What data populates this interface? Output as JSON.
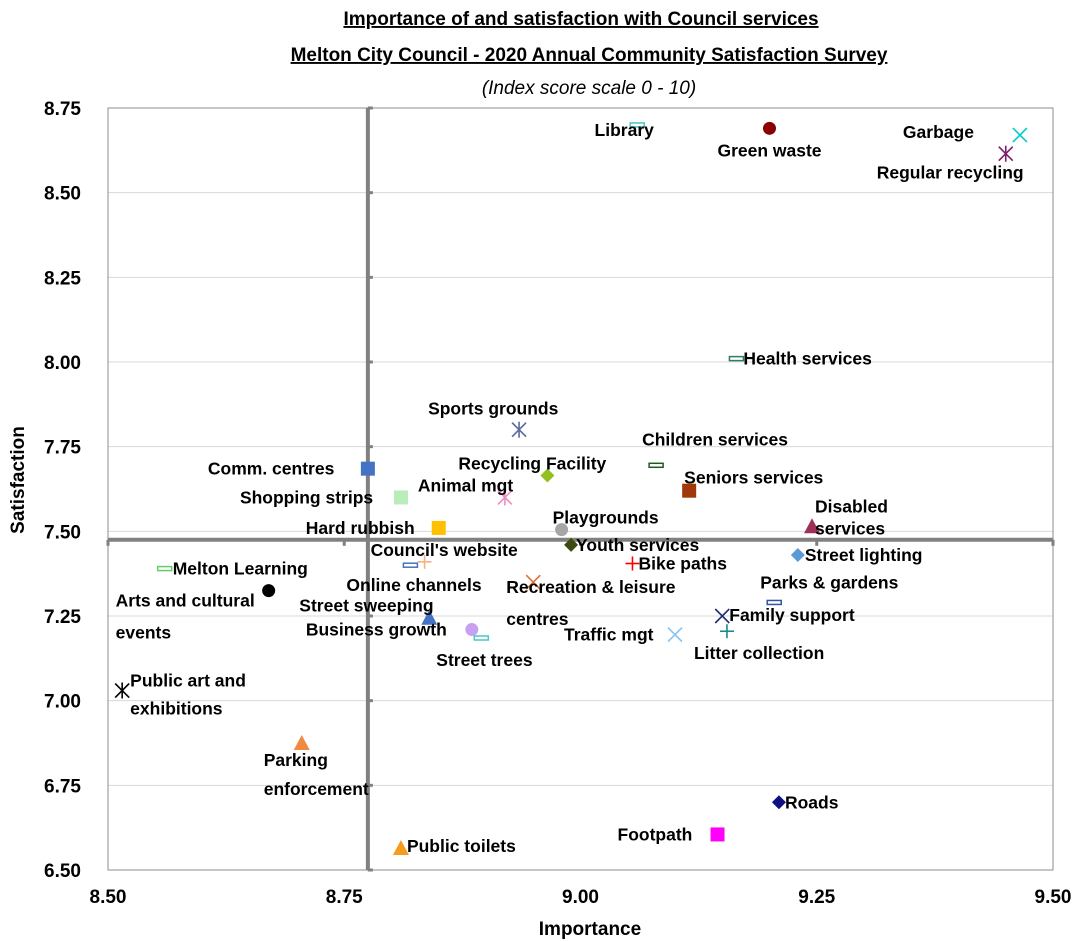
{
  "chart_data": {
    "type": "scatter",
    "title": "Importance of and satisfaction with Council services",
    "subtitle": "Melton City Council - 2020 Annual Community Satisfaction Survey",
    "subtitle2": "(Index score scale 0 - 10)",
    "xlabel": "Importance",
    "ylabel": "Satisfaction",
    "xlim": [
      8.5,
      9.5
    ],
    "ylim": [
      6.5,
      8.75
    ],
    "x_ticks": [
      "8.50",
      "8.75",
      "9.00",
      "9.25",
      "9.50"
    ],
    "y_ticks": [
      "6.50",
      "6.75",
      "7.00",
      "7.25",
      "7.50",
      "7.75",
      "8.00",
      "8.25",
      "8.50",
      "8.75"
    ],
    "grid": true,
    "quadrant_lines": {
      "x": 8.775,
      "y": 7.475
    },
    "points": [
      {
        "label_lines": [
          "Library"
        ],
        "x": 9.06,
        "y": 8.7,
        "marker": "bar",
        "color": "#4bc6c6"
      },
      {
        "label_lines": [
          "Green waste"
        ],
        "x": 9.2,
        "y": 8.69,
        "marker": "circle",
        "color": "#8b0000"
      },
      {
        "label_lines": [
          "Garbage"
        ],
        "x": 9.465,
        "y": 8.67,
        "marker": "x",
        "color": "#00cccc"
      },
      {
        "label_lines": [
          "Regular recycling"
        ],
        "x": 9.45,
        "y": 8.615,
        "marker": "star",
        "color": "#7a1f6b"
      },
      {
        "label_lines": [
          "Health services"
        ],
        "x": 9.165,
        "y": 8.01,
        "marker": "bar",
        "color": "#2e7d5b"
      },
      {
        "label_lines": [
          "Sports grounds"
        ],
        "x": 8.935,
        "y": 7.8,
        "marker": "star",
        "color": "#5a6aa0"
      },
      {
        "label_lines": [
          "Children services"
        ],
        "x": 9.08,
        "y": 7.695,
        "marker": "bar",
        "color": "#1f5a1f"
      },
      {
        "label_lines": [
          "Comm. centres"
        ],
        "x": 8.775,
        "y": 7.685,
        "marker": "square",
        "color": "#4472c4"
      },
      {
        "label_lines": [
          "Recycling Facility"
        ],
        "x": 8.965,
        "y": 7.665,
        "marker": "diamond",
        "color": "#92c020"
      },
      {
        "label_lines": [
          "Seniors services"
        ],
        "x": 9.115,
        "y": 7.62,
        "marker": "square",
        "color": "#a0380a"
      },
      {
        "label_lines": [
          "Animal mgt"
        ],
        "x": 8.92,
        "y": 7.6,
        "marker": "star",
        "color": "#f28cc0"
      },
      {
        "label_lines": [
          "Shopping strips"
        ],
        "x": 8.81,
        "y": 7.6,
        "marker": "square",
        "color": "#b8ecb8"
      },
      {
        "label_lines": [
          "Disabled",
          "services"
        ],
        "x": 9.245,
        "y": 7.515,
        "marker": "triangle",
        "color": "#a0305a"
      },
      {
        "label_lines": [
          "Hard rubbish"
        ],
        "x": 8.85,
        "y": 7.51,
        "marker": "square",
        "color": "#ffc000"
      },
      {
        "label_lines": [
          "Playgrounds"
        ],
        "x": 8.98,
        "y": 7.505,
        "marker": "circle",
        "color": "#a6a6a6"
      },
      {
        "label_lines": [
          "Youth services"
        ],
        "x": 8.99,
        "y": 7.46,
        "marker": "diamond",
        "color": "#3a4a10"
      },
      {
        "label_lines": [
          "Street lighting"
        ],
        "x": 9.23,
        "y": 7.43,
        "marker": "diamond",
        "color": "#5b9bd5"
      },
      {
        "label_lines": [
          "Council's website"
        ],
        "x": 8.835,
        "y": 7.41,
        "marker": "plus",
        "color": "#f4b183"
      },
      {
        "label_lines": [
          "Bike paths"
        ],
        "x": 9.055,
        "y": 7.405,
        "marker": "plus",
        "color": "#ff0000"
      },
      {
        "label_lines": [
          "Online channels"
        ],
        "x": 8.82,
        "y": 7.4,
        "marker": "bar",
        "color": "#4472c4"
      },
      {
        "label_lines": [
          "Melton Learning"
        ],
        "x": 8.56,
        "y": 7.39,
        "marker": "bar",
        "color": "#66cc66"
      },
      {
        "label_lines": [
          "Recreation & leisure",
          "centres"
        ],
        "x": 8.95,
        "y": 7.35,
        "marker": "x",
        "color": "#e07030"
      },
      {
        "label_lines": [
          "Arts and cultural",
          "events"
        ],
        "x": 8.67,
        "y": 7.325,
        "marker": "circle",
        "color": "#000000"
      },
      {
        "label_lines": [
          "Parks & gardens"
        ],
        "x": 9.205,
        "y": 7.29,
        "marker": "bar",
        "color": "#2f55a4"
      },
      {
        "label_lines": [
          "Family support"
        ],
        "x": 9.15,
        "y": 7.25,
        "marker": "x",
        "color": "#203070"
      },
      {
        "label_lines": [
          "Street sweeping"
        ],
        "x": 8.84,
        "y": 7.245,
        "marker": "triangle",
        "color": "#4472c4"
      },
      {
        "label_lines": [
          "Business growth"
        ],
        "x": 8.885,
        "y": 7.21,
        "marker": "circle",
        "color": "#c8a0f0"
      },
      {
        "label_lines": [
          "Litter collection"
        ],
        "x": 9.155,
        "y": 7.205,
        "marker": "plus",
        "color": "#1a8a8a"
      },
      {
        "label_lines": [
          "Traffic mgt"
        ],
        "x": 9.1,
        "y": 7.195,
        "marker": "x",
        "color": "#8ac4f0"
      },
      {
        "label_lines": [
          "Street trees"
        ],
        "x": 8.895,
        "y": 7.185,
        "marker": "bar",
        "color": "#4bc6c6"
      },
      {
        "label_lines": [
          "Public art and",
          "exhibitions"
        ],
        "x": 8.515,
        "y": 7.03,
        "marker": "star",
        "color": "#000000"
      },
      {
        "label_lines": [
          "Parking",
          "enforcement"
        ],
        "x": 8.705,
        "y": 6.875,
        "marker": "triangle",
        "color": "#f08a40"
      },
      {
        "label_lines": [
          "Roads"
        ],
        "x": 9.21,
        "y": 6.7,
        "marker": "diamond",
        "color": "#101080"
      },
      {
        "label_lines": [
          "Footpath"
        ],
        "x": 9.145,
        "y": 6.605,
        "marker": "square",
        "color": "#ff00ff"
      },
      {
        "label_lines": [
          "Public toilets"
        ],
        "x": 8.81,
        "y": 6.565,
        "marker": "triangle",
        "color": "#f59b1e"
      }
    ]
  }
}
